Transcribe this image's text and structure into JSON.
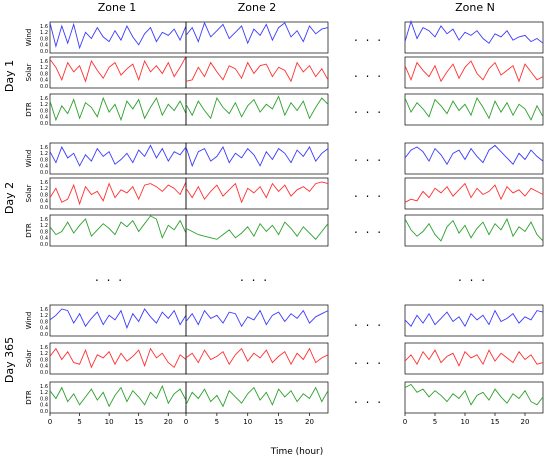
{
  "figure": {
    "zone_titles": [
      "Zone 1",
      "Zone 2",
      "Zone N"
    ],
    "day_titles": [
      "Day 1",
      "Day 2",
      "Day 365"
    ],
    "row_labels": [
      "Wind",
      "Solar",
      "DTR"
    ],
    "xlabel": "Time (hour)",
    "ellipsis": ". . .",
    "colors": {
      "Wind": "#3b3bff",
      "Solar": "#ff3030",
      "DTR": "#2ca02c",
      "frame": "#000000"
    }
  },
  "chart_data": {
    "type": "line",
    "x": [
      0,
      1,
      2,
      3,
      4,
      5,
      6,
      7,
      8,
      9,
      10,
      11,
      12,
      13,
      14,
      15,
      16,
      17,
      18,
      19,
      20,
      21,
      22,
      23
    ],
    "xlim": [
      0,
      23
    ],
    "xticks": [
      0,
      5,
      10,
      15,
      20
    ],
    "ylim": [
      0,
      1.6
    ],
    "yticks": [
      0.0,
      0.4,
      0.8,
      1.2,
      1.6
    ],
    "ytick_labels": [
      "0.0",
      "0.4",
      "0.8",
      "1.2",
      "1.6"
    ],
    "days": [
      {
        "day": "Day 1",
        "zones": [
          {
            "zone": "Zone 1",
            "zone_index": 0,
            "Wind": [
              1.8,
              0.3,
              1.6,
              0.5,
              1.7,
              0.2,
              1.2,
              0.8,
              1.5,
              0.9,
              0.6,
              1.3,
              0.7,
              1.6,
              0.9,
              0.4,
              1.1,
              1.5,
              0.6,
              1.2,
              1.0,
              1.4,
              0.7,
              1.6
            ],
            "Solar": [
              1.7,
              1.2,
              0.4,
              1.5,
              0.9,
              1.3,
              0.3,
              1.6,
              1.0,
              0.5,
              1.2,
              1.5,
              0.7,
              1.1,
              1.4,
              0.4,
              1.6,
              0.9,
              1.3,
              0.8,
              1.5,
              0.6,
              1.2,
              1.9
            ],
            "DTR": [
              1.4,
              0.2,
              1.1,
              0.6,
              1.5,
              0.3,
              1.3,
              1.0,
              0.4,
              1.6,
              0.7,
              1.2,
              0.2,
              1.4,
              0.9,
              1.5,
              0.3,
              1.0,
              1.6,
              0.5,
              1.2,
              0.8,
              1.4,
              0.6
            ]
          },
          {
            "zone": "Zone 2",
            "zone_index": 1,
            "Wind": [
              1.0,
              1.5,
              0.6,
              1.8,
              0.9,
              1.3,
              1.7,
              0.8,
              1.2,
              1.6,
              0.5,
              1.4,
              1.0,
              1.7,
              0.7,
              1.5,
              1.8,
              0.9,
              1.3,
              0.6,
              1.6,
              1.1,
              1.4,
              1.5
            ],
            "Solar": [
              0.3,
              0.4,
              1.2,
              0.6,
              1.5,
              0.9,
              0.4,
              1.3,
              1.1,
              0.5,
              1.5,
              0.8,
              1.3,
              1.4,
              0.6,
              1.2,
              1.0,
              0.3,
              1.5,
              0.9,
              1.3,
              0.6,
              1.1,
              0.4
            ],
            "DTR": [
              1.2,
              0.5,
              1.4,
              0.8,
              0.3,
              1.6,
              1.0,
              0.6,
              1.3,
              0.4,
              1.1,
              1.5,
              0.7,
              1.2,
              0.9,
              1.7,
              0.5,
              1.3,
              0.8,
              1.4,
              0.3,
              1.0,
              1.6,
              1.2
            ]
          },
          {
            "zone": "Zone N",
            "zone_index": 2,
            "Wind": [
              0.6,
              1.9,
              0.8,
              1.5,
              1.3,
              0.9,
              1.6,
              1.1,
              1.4,
              0.7,
              1.2,
              1.0,
              1.3,
              0.8,
              0.5,
              1.1,
              0.9,
              1.3,
              0.7,
              0.9,
              1.0,
              0.6,
              0.8,
              0.5
            ],
            "Solar": [
              1.3,
              0.4,
              1.5,
              1.0,
              0.6,
              1.3,
              0.3,
              0.9,
              1.4,
              0.5,
              1.2,
              1.6,
              0.8,
              0.4,
              1.1,
              1.5,
              0.7,
              1.0,
              1.3,
              0.3,
              1.4,
              0.9,
              0.4,
              0.6
            ],
            "DTR": [
              1.6,
              0.7,
              1.3,
              0.9,
              0.4,
              1.5,
              1.1,
              0.6,
              1.4,
              0.8,
              1.2,
              0.5,
              1.6,
              1.0,
              0.3,
              1.4,
              0.7,
              1.3,
              0.5,
              1.2,
              0.9,
              0.2,
              1.1,
              0.4
            ]
          }
        ]
      },
      {
        "day": "Day 2",
        "zones": [
          {
            "zone": "Zone 1",
            "zone_index": 0,
            "Wind": [
              1.3,
              0.6,
              1.6,
              0.9,
              1.2,
              0.4,
              1.1,
              0.7,
              1.5,
              1.0,
              1.3,
              0.5,
              0.8,
              1.2,
              0.6,
              1.4,
              1.0,
              1.7,
              0.9,
              1.5,
              0.7,
              1.3,
              1.1,
              1.6
            ],
            "Solar": [
              0.6,
              1.2,
              0.3,
              0.5,
              1.4,
              0.2,
              1.3,
              0.8,
              1.0,
              0.4,
              1.5,
              0.6,
              1.1,
              0.9,
              1.3,
              0.5,
              1.4,
              1.5,
              1.3,
              1.0,
              1.4,
              1.2,
              0.8,
              1.6
            ],
            "DTR": [
              1.1,
              0.6,
              0.8,
              1.4,
              0.7,
              1.2,
              1.6,
              0.5,
              0.9,
              1.3,
              1.0,
              0.6,
              1.4,
              1.1,
              1.5,
              0.8,
              1.3,
              1.8,
              1.6,
              0.4,
              1.2,
              0.9,
              1.5,
              0.7
            ]
          },
          {
            "zone": "Zone 2",
            "zone_index": 1,
            "Wind": [
              1.6,
              0.4,
              1.3,
              1.5,
              0.7,
              1.0,
              1.6,
              0.6,
              1.2,
              0.9,
              1.5,
              1.1,
              0.4,
              1.3,
              0.8,
              1.5,
              1.2,
              0.6,
              1.4,
              1.0,
              1.6,
              0.7,
              1.2,
              1.5
            ],
            "Solar": [
              1.2,
              0.6,
              1.3,
              0.5,
              1.0,
              1.4,
              0.7,
              1.1,
              1.5,
              0.3,
              1.2,
              0.9,
              1.3,
              0.6,
              1.5,
              1.0,
              1.4,
              0.7,
              1.1,
              1.3,
              1.0,
              1.5,
              1.6,
              1.5
            ],
            "DTR": [
              1.0,
              0.8,
              0.6,
              0.5,
              0.4,
              0.3,
              0.6,
              0.9,
              0.4,
              0.7,
              1.1,
              0.5,
              1.3,
              0.8,
              1.2,
              0.6,
              1.4,
              1.0,
              0.5,
              1.1,
              0.7,
              0.3,
              0.8,
              1.3
            ]
          },
          {
            "zone": "Zone N",
            "zone_index": 2,
            "Wind": [
              0.9,
              1.4,
              1.6,
              1.3,
              0.7,
              1.5,
              1.1,
              0.5,
              1.2,
              1.4,
              0.8,
              1.5,
              1.0,
              0.6,
              1.4,
              1.7,
              1.3,
              0.9,
              0.5,
              1.2,
              0.8,
              1.4,
              1.0,
              0.7
            ],
            "Solar": [
              0.3,
              0.5,
              0.4,
              1.0,
              0.6,
              1.2,
              0.9,
              1.3,
              0.7,
              1.1,
              1.5,
              0.6,
              1.2,
              0.8,
              1.0,
              1.4,
              0.5,
              1.3,
              0.9,
              1.1,
              0.7,
              1.2,
              1.0,
              0.8
            ],
            "DTR": [
              1.6,
              0.9,
              0.5,
              0.8,
              1.3,
              0.6,
              0.2,
              1.1,
              1.5,
              0.7,
              1.2,
              0.4,
              1.0,
              1.4,
              0.6,
              1.3,
              0.9,
              1.6,
              0.5,
              1.1,
              0.8,
              1.4,
              0.6,
              0.2
            ]
          }
        ]
      },
      {
        "day": "Day 365",
        "zones": [
          {
            "zone": "Zone 1",
            "zone_index": 0,
            "Wind": [
              0.9,
              1.2,
              1.6,
              1.5,
              0.7,
              1.3,
              0.5,
              1.0,
              1.4,
              0.6,
              1.2,
              0.9,
              1.5,
              0.4,
              1.3,
              0.8,
              1.6,
              1.1,
              0.7,
              1.4,
              1.0,
              1.5,
              0.6,
              1.2
            ],
            "Solar": [
              1.0,
              1.5,
              0.8,
              1.3,
              0.6,
              0.5,
              1.4,
              0.3,
              1.1,
              0.9,
              1.3,
              0.5,
              1.2,
              0.7,
              1.0,
              1.4,
              0.4,
              1.5,
              0.9,
              1.2,
              0.6,
              0.3,
              1.1,
              0.8
            ],
            "DTR": [
              1.3,
              0.8,
              1.5,
              0.6,
              1.1,
              0.4,
              0.9,
              1.4,
              0.7,
              1.2,
              0.3,
              1.0,
              1.5,
              0.6,
              1.3,
              0.9,
              0.4,
              1.2,
              0.8,
              1.6,
              0.5,
              1.1,
              1.4,
              0.7
            ]
          },
          {
            "zone": "Zone 2",
            "zone_index": 1,
            "Wind": [
              0.8,
              1.3,
              0.6,
              1.5,
              1.0,
              1.2,
              0.7,
              1.4,
              1.3,
              0.5,
              1.1,
              0.9,
              1.5,
              0.6,
              1.2,
              1.4,
              0.8,
              1.3,
              1.0,
              1.5,
              0.7,
              1.1,
              1.3,
              1.5
            ],
            "Solar": [
              0.9,
              1.2,
              0.6,
              1.4,
              0.8,
              1.0,
              1.3,
              0.5,
              1.1,
              1.5,
              0.7,
              1.2,
              0.9,
              1.4,
              0.6,
              1.0,
              1.3,
              0.5,
              1.2,
              0.8,
              1.5,
              0.6,
              0.9,
              1.1
            ],
            "DTR": [
              0.4,
              1.2,
              0.8,
              1.4,
              0.6,
              1.0,
              0.3,
              1.3,
              0.9,
              0.5,
              1.1,
              1.5,
              0.7,
              1.2,
              0.4,
              1.4,
              0.9,
              1.3,
              0.6,
              1.1,
              0.8,
              1.5,
              0.6,
              1.3
            ]
          },
          {
            "zone": "Zone N",
            "zone_index": 2,
            "Wind": [
              0.9,
              0.5,
              1.2,
              0.7,
              1.3,
              0.6,
              1.0,
              1.4,
              0.8,
              1.1,
              0.5,
              1.3,
              0.9,
              1.2,
              0.6,
              1.5,
              0.8,
              1.0,
              1.3,
              0.7,
              1.1,
              0.9,
              1.5,
              1.4
            ],
            "Solar": [
              0.7,
              1.1,
              0.5,
              1.3,
              0.8,
              1.4,
              0.6,
              1.0,
              1.2,
              0.4,
              1.3,
              0.9,
              1.1,
              0.5,
              1.4,
              0.7,
              1.2,
              0.9,
              0.6,
              1.3,
              0.8,
              1.1,
              0.5,
              0.6
            ],
            "DTR": [
              1.5,
              1.7,
              1.2,
              1.4,
              0.9,
              1.3,
              1.0,
              0.6,
              1.1,
              0.8,
              1.3,
              0.4,
              1.0,
              1.2,
              0.7,
              1.4,
              0.9,
              0.5,
              1.1,
              0.8,
              1.3,
              0.6,
              0.4,
              0.9
            ]
          }
        ]
      }
    ]
  }
}
